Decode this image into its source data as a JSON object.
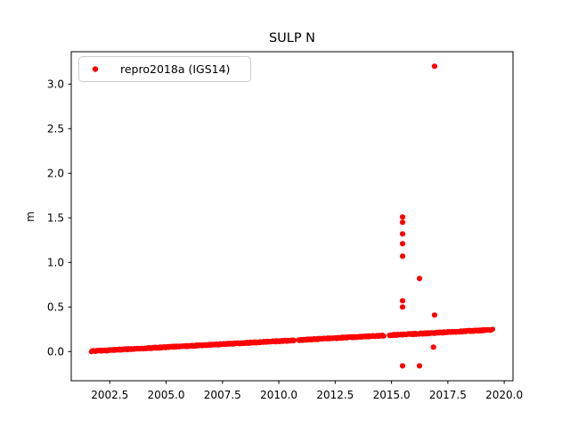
{
  "title": "SULP N",
  "ylabel": "m",
  "xlabel": "",
  "legend": {
    "label": "repro2018a (IGS14)",
    "position": "upper left"
  },
  "colors": {
    "marker": "#ff0000",
    "axes": "#000000",
    "text": "#000000",
    "legend_border": "#cccccc",
    "background": "#ffffff"
  },
  "chart_data": {
    "type": "scatter",
    "title": "SULP N",
    "xlabel": "",
    "ylabel": "m",
    "xlim": [
      2000.79,
      2020.39
    ],
    "ylim": [
      -0.327,
      3.363
    ],
    "xticks": [
      2002.5,
      2005.0,
      2007.5,
      2010.0,
      2012.5,
      2015.0,
      2017.5,
      2020.0
    ],
    "yticks": [
      0.0,
      0.5,
      1.0,
      1.5,
      2.0,
      2.5,
      3.0
    ],
    "grid": false,
    "legend_position": "upper left",
    "series": [
      {
        "name": "repro2018a (IGS14)",
        "color": "#ff0000",
        "marker": "dot",
        "description": "Dense near-linear daily position time series with data gaps and outliers",
        "trend_segments": [
          {
            "x_start": 2001.68,
            "x_end": 2010.67,
            "y_start": 0.005,
            "y_end": 0.126
          },
          {
            "x_start": 2010.87,
            "x_end": 2014.66,
            "y_start": 0.129,
            "y_end": 0.18
          },
          {
            "x_start": 2014.9,
            "x_end": 2019.49,
            "y_start": 0.183,
            "y_end": 0.245
          }
        ],
        "sample_step_years": 0.019,
        "band_noise": 0.007,
        "outliers": [
          [
            2015.49,
            1.51
          ],
          [
            2015.49,
            1.45
          ],
          [
            2015.49,
            1.32
          ],
          [
            2015.49,
            1.21
          ],
          [
            2015.49,
            1.07
          ],
          [
            2015.49,
            0.57
          ],
          [
            2015.49,
            0.5
          ],
          [
            2015.49,
            -0.16
          ],
          [
            2016.24,
            0.82
          ],
          [
            2016.24,
            -0.16
          ],
          [
            2016.91,
            3.2
          ],
          [
            2016.91,
            0.41
          ],
          [
            2016.86,
            0.05
          ]
        ]
      }
    ]
  }
}
